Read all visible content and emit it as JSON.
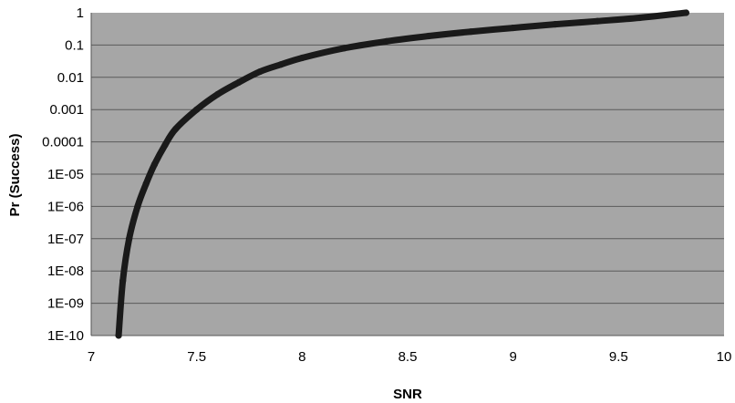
{
  "chart_data": {
    "type": "line",
    "title": "",
    "xlabel": "SNR",
    "ylabel": "Pr (Success)",
    "xscale": "linear",
    "yscale": "log",
    "xlim": [
      7,
      10
    ],
    "ylim": [
      1e-10,
      1
    ],
    "grid": "horizontal major gridlines",
    "legend": "none",
    "x_ticks": [
      "7",
      "7.5",
      "8",
      "8.5",
      "9",
      "9.5",
      "10"
    ],
    "y_ticks": [
      "1E-10",
      "1E-09",
      "1E-08",
      "1E-07",
      "1E-06",
      "1E-05",
      "0.0001",
      "0.001",
      "0.01",
      "0.1",
      "1"
    ],
    "series": [
      {
        "x": [
          7.13,
          7.15,
          7.18,
          7.22,
          7.26,
          7.3,
          7.35,
          7.4,
          7.5,
          7.6,
          7.7,
          7.8,
          7.9,
          8.0,
          8.2,
          8.4,
          8.6,
          8.8,
          9.0,
          9.2,
          9.4,
          9.6,
          9.82
        ],
        "y": [
          1e-10,
          5e-09,
          1e-07,
          1e-06,
          5e-06,
          2e-05,
          8e-05,
          0.00025,
          0.001,
          0.003,
          0.007,
          0.015,
          0.025,
          0.04,
          0.08,
          0.13,
          0.19,
          0.26,
          0.34,
          0.44,
          0.55,
          0.7,
          1
        ]
      }
    ],
    "colors": {
      "plot_background": "#a6a6a6",
      "gridline": "#5a5a5a",
      "series": "#1a1a1a"
    }
  }
}
